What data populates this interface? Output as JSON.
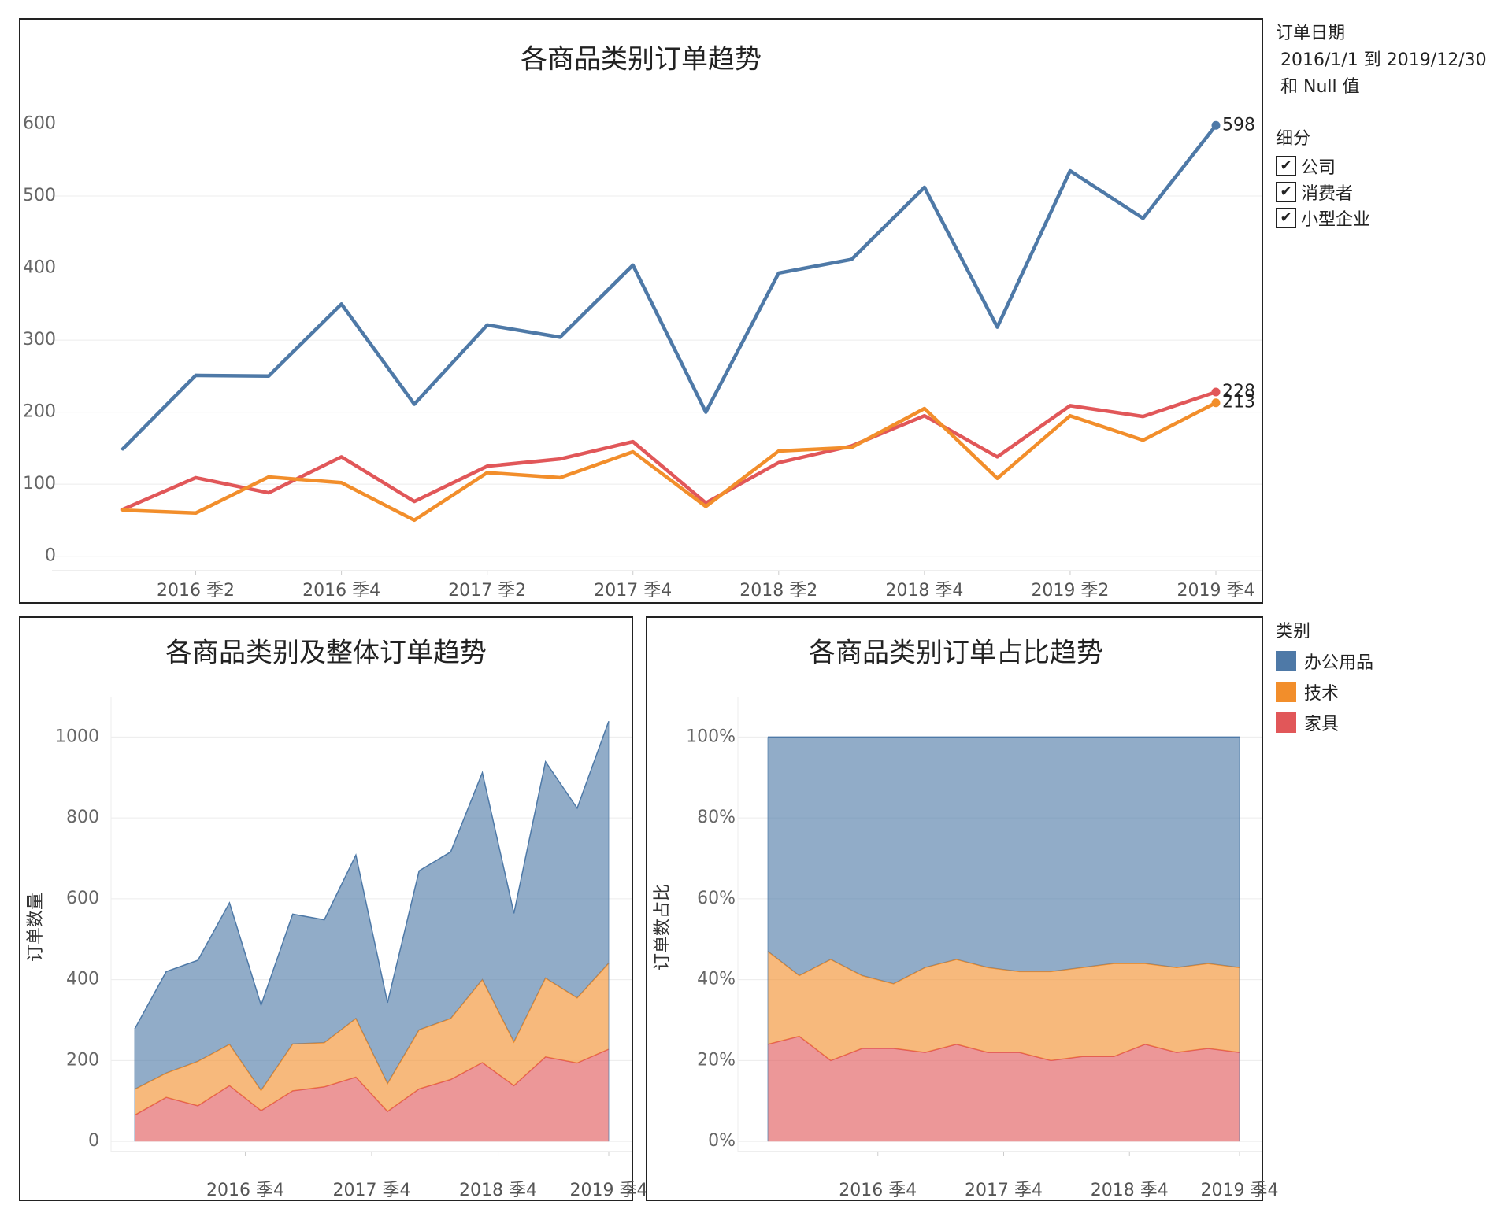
{
  "filters": {
    "date_title": "订单日期",
    "date_range": "2016/1/1 到 2019/12/30",
    "date_null": "和 Null 值",
    "segment_title": "细分",
    "segments": [
      "公司",
      "消费者",
      "小型企业"
    ],
    "check_mark": "✔"
  },
  "category_legend": {
    "title": "类别",
    "items": [
      {
        "label": "办公用品",
        "color": "#4e79a7"
      },
      {
        "label": "技术",
        "color": "#f28e2b"
      },
      {
        "label": "家具",
        "color": "#e15759"
      }
    ]
  },
  "chart_data": [
    {
      "type": "line",
      "title": "各商品类别订单趋势",
      "xlabel": "",
      "ylabel": "",
      "ylim": [
        -20,
        630
      ],
      "yticks": [
        "0",
        "100",
        "200",
        "300",
        "400",
        "500",
        "600"
      ],
      "xticks": [
        "2016 季2",
        "2016 季4",
        "2017 季2",
        "2017 季4",
        "2018 季2",
        "2018 季4",
        "2019 季2",
        "2019 季4"
      ],
      "grid": true,
      "series": [
        {
          "name": "办公用品",
          "color": "#4e79a7",
          "end_label": "598",
          "values": [
            149,
            251,
            250,
            350,
            211,
            321,
            304,
            404,
            200,
            393,
            412,
            512,
            318,
            535,
            469,
            598
          ]
        },
        {
          "name": "家具",
          "color": "#e15759",
          "end_label": "228",
          "values": [
            65,
            109,
            88,
            138,
            76,
            125,
            135,
            159,
            74,
            130,
            153,
            195,
            138,
            209,
            194,
            228
          ]
        },
        {
          "name": "技术",
          "color": "#f28e2b",
          "end_label": "213",
          "values": [
            64,
            60,
            110,
            102,
            50,
            116,
            109,
            145,
            69,
            146,
            151,
            205,
            108,
            195,
            161,
            213
          ]
        }
      ]
    },
    {
      "type": "area",
      "title": "各商品类别及整体订单趋势",
      "xlabel": "",
      "ylabel": "订单数量",
      "ylim": [
        -25,
        1100
      ],
      "yticks": [
        "0",
        "200",
        "400",
        "600",
        "800",
        "1000"
      ],
      "xticks": [
        "2016 季4",
        "2017 季4",
        "2018 季4",
        "2019 季4"
      ],
      "stacked": true,
      "series": [
        {
          "name": "家具",
          "color": "#e15759",
          "values": [
            65,
            109,
            88,
            138,
            76,
            125,
            135,
            159,
            74,
            130,
            153,
            195,
            138,
            209,
            194,
            228
          ]
        },
        {
          "name": "技术",
          "color": "#f28e2b",
          "values": [
            64,
            60,
            110,
            102,
            50,
            116,
            109,
            145,
            69,
            146,
            151,
            205,
            108,
            195,
            161,
            213
          ]
        },
        {
          "name": "办公用品",
          "color": "#4e79a7",
          "values": [
            149,
            251,
            250,
            350,
            211,
            321,
            304,
            404,
            200,
            393,
            412,
            512,
            318,
            535,
            469,
            598
          ]
        }
      ]
    },
    {
      "type": "area",
      "title": "各商品类别订单占比趋势",
      "xlabel": "",
      "ylabel": "订单数占比",
      "ylim": [
        -2.5,
        110
      ],
      "yticks": [
        "0%",
        "20%",
        "40%",
        "60%",
        "80%",
        "100%"
      ],
      "xticks": [
        "2016 季4",
        "2017 季4",
        "2018 季4",
        "2019 季4"
      ],
      "stacked": true,
      "series": [
        {
          "name": "家具",
          "color": "#e15759",
          "values": [
            24,
            26,
            20,
            23,
            23,
            22,
            24,
            22,
            22,
            20,
            21,
            21,
            24,
            22,
            23,
            22
          ]
        },
        {
          "name": "技术",
          "color": "#f28e2b",
          "values": [
            23,
            15,
            25,
            18,
            16,
            21,
            21,
            21,
            20,
            22,
            22,
            23,
            20,
            21,
            21,
            21
          ]
        },
        {
          "name": "办公用品",
          "color": "#4e79a7",
          "values": [
            53,
            59,
            55,
            59,
            61,
            57,
            55,
            57,
            58,
            58,
            57,
            56,
            56,
            57,
            56,
            57
          ]
        }
      ]
    }
  ]
}
